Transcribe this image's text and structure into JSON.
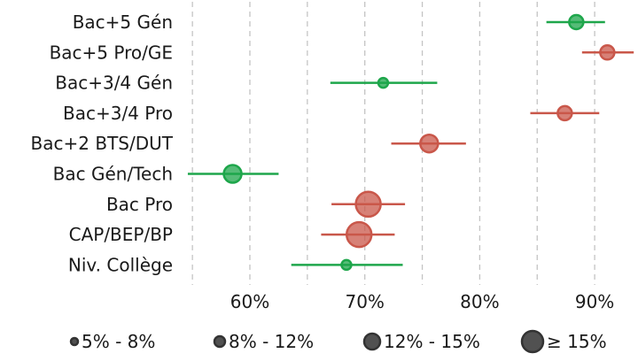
{
  "chart_data": {
    "type": "scatter",
    "subtype": "dot-with-interval",
    "title": "",
    "xlabel": "",
    "ylabel": "",
    "xlim": [
      53.5,
      94
    ],
    "x_ticks": [
      60,
      70,
      80,
      90
    ],
    "x_tick_labels": [
      "60%",
      "70%",
      "80%",
      "90%"
    ],
    "gridlines_x": [
      55,
      60,
      65,
      70,
      75,
      80,
      85,
      90
    ],
    "grid": true,
    "colors": {
      "above": "#1ea64b",
      "below": "#c9574a",
      "legend": "#333333",
      "grid": "#c4c4c4"
    },
    "categories": [
      "Bac+5 Gén",
      "Bac+5 Pro/GE",
      "Bac+3/4 Gén",
      "Bac+3/4 Pro",
      "Bac+2 BTS/DUT",
      "Bac Gén/Tech",
      "Bac Pro",
      "CAP/BEP/BP",
      "Niv. Collège"
    ],
    "points": [
      {
        "label": "Bac+5 Gén",
        "value": 88.4,
        "low": 85.8,
        "high": 90.9,
        "color": "above",
        "size_class": 1
      },
      {
        "label": "Bac+5 Pro/GE",
        "value": 91.1,
        "low": 88.9,
        "high": 93.4,
        "color": "below",
        "size_class": 1
      },
      {
        "label": "Bac+3/4 Gén",
        "value": 71.6,
        "low": 67.0,
        "high": 76.3,
        "color": "above",
        "size_class": 0
      },
      {
        "label": "Bac+3/4 Pro",
        "value": 87.4,
        "low": 84.4,
        "high": 90.4,
        "color": "below",
        "size_class": 1
      },
      {
        "label": "Bac+2 BTS/DUT",
        "value": 75.6,
        "low": 72.3,
        "high": 78.8,
        "color": "below",
        "size_class": 2
      },
      {
        "label": "Bac Gén/Tech",
        "value": 58.5,
        "low": 54.6,
        "high": 62.5,
        "color": "above",
        "size_class": 2
      },
      {
        "label": "Bac Pro",
        "value": 70.3,
        "low": 67.1,
        "high": 73.5,
        "color": "below",
        "size_class": 3
      },
      {
        "label": "CAP/BEP/BP",
        "value": 69.5,
        "low": 66.2,
        "high": 72.6,
        "color": "below",
        "size_class": 3
      },
      {
        "label": "Niv. Collège",
        "value": 68.4,
        "low": 63.6,
        "high": 73.3,
        "color": "above",
        "size_class": 0
      }
    ],
    "legend": {
      "placement": "bottom",
      "entries": [
        "5% - 8%",
        "8% - 12%",
        "12% - 15%",
        "≥ 15%"
      ]
    }
  }
}
